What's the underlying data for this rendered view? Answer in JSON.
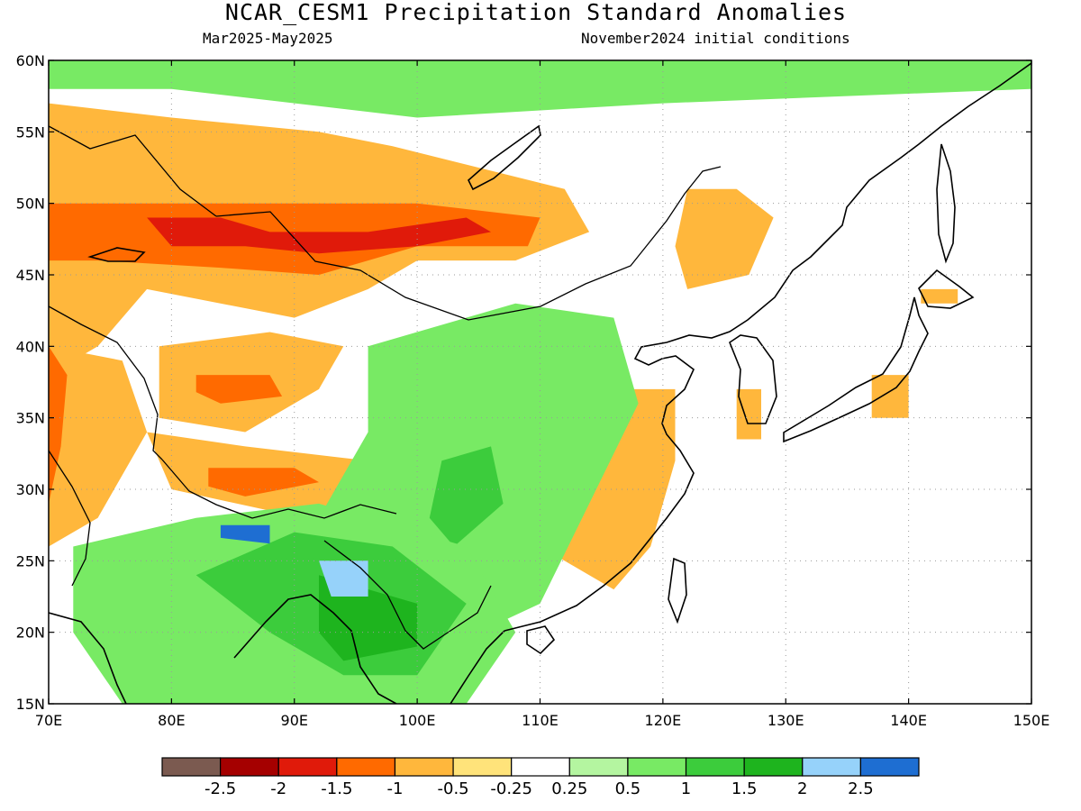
{
  "header": {
    "title": "NCAR_CESM1 Precipitation Standard Anomalies",
    "period": "Mar2025-May2025",
    "init": "November2024 initial conditions"
  },
  "map": {
    "lon_range": [
      70,
      150
    ],
    "lat_range": [
      15,
      60
    ],
    "lon_ticks": [
      {
        "v": 70,
        "label": "70E"
      },
      {
        "v": 80,
        "label": "80E"
      },
      {
        "v": 90,
        "label": "90E"
      },
      {
        "v": 100,
        "label": "100E"
      },
      {
        "v": 110,
        "label": "110E"
      },
      {
        "v": 120,
        "label": "120E"
      },
      {
        "v": 130,
        "label": "130E"
      },
      {
        "v": 140,
        "label": "140E"
      },
      {
        "v": 150,
        "label": "150E"
      }
    ],
    "lat_ticks": [
      {
        "v": 15,
        "label": "15N"
      },
      {
        "v": 20,
        "label": "20N"
      },
      {
        "v": 25,
        "label": "25N"
      },
      {
        "v": 30,
        "label": "30N"
      },
      {
        "v": 35,
        "label": "35N"
      },
      {
        "v": 40,
        "label": "40N"
      },
      {
        "v": 45,
        "label": "45N"
      },
      {
        "v": 50,
        "label": "50N"
      },
      {
        "v": 55,
        "label": "55N"
      },
      {
        "v": 60,
        "label": "60N"
      }
    ],
    "grid": true
  },
  "colorbar": {
    "colors": [
      "#7b5a50",
      "#a50000",
      "#e01a0a",
      "#ff6a00",
      "#ffb73c",
      "#ffe37a",
      "#ffffff",
      "#b4f5a0",
      "#78ea64",
      "#3ccc3c",
      "#1eb41e",
      "#96d2fa",
      "#1e6ed2"
    ],
    "labels": [
      "-2.5",
      "-2",
      "-1.5",
      "-1",
      "-0.5",
      "-0.25",
      "0.25",
      "0.5",
      "1",
      "1.5",
      "2",
      "2.5"
    ]
  },
  "anomaly_regions": [
    {
      "name": "north-mongolia-green",
      "color": "#78ea64",
      "poly": [
        [
          70,
          60
        ],
        [
          150,
          60
        ],
        [
          150,
          58
        ],
        [
          120,
          57
        ],
        [
          100,
          56
        ],
        [
          80,
          58
        ],
        [
          70,
          58
        ]
      ]
    },
    {
      "name": "kazakhstan-dry",
      "color": "#ffb73c",
      "poly": [
        [
          70,
          57
        ],
        [
          80,
          56
        ],
        [
          92,
          55
        ],
        [
          98,
          54
        ],
        [
          112,
          51
        ],
        [
          114,
          48
        ],
        [
          108,
          46
        ],
        [
          100,
          46
        ],
        [
          96,
          44
        ],
        [
          90,
          42
        ],
        [
          78,
          44
        ],
        [
          74,
          40
        ],
        [
          70,
          38
        ]
      ]
    },
    {
      "name": "central-asia-dry-core",
      "color": "#ff6a00",
      "poly": [
        [
          70,
          50
        ],
        [
          80,
          50
        ],
        [
          90,
          50
        ],
        [
          100,
          50
        ],
        [
          110,
          49
        ],
        [
          109,
          47
        ],
        [
          100,
          47
        ],
        [
          92,
          45
        ],
        [
          84,
          45.5
        ],
        [
          74,
          46
        ],
        [
          70,
          46
        ]
      ]
    },
    {
      "name": "altai-severe-dry",
      "color": "#e01a0a",
      "poly": [
        [
          78,
          49
        ],
        [
          84,
          49
        ],
        [
          88,
          48
        ],
        [
          96,
          48
        ],
        [
          104,
          49
        ],
        [
          106,
          48
        ],
        [
          100,
          47
        ],
        [
          92,
          46.5
        ],
        [
          86,
          47
        ],
        [
          80,
          47
        ]
      ]
    },
    {
      "name": "tarim-dry",
      "color": "#ffb73c",
      "poly": [
        [
          79,
          40
        ],
        [
          88,
          41
        ],
        [
          94,
          40
        ],
        [
          92,
          37
        ],
        [
          86,
          34
        ],
        [
          79,
          35
        ]
      ]
    },
    {
      "name": "tarim-dry-core",
      "color": "#ff6a00",
      "poly": [
        [
          82,
          38
        ],
        [
          88,
          38
        ],
        [
          89,
          36.5
        ],
        [
          84,
          36
        ],
        [
          82,
          36.8
        ]
      ]
    },
    {
      "name": "west-asia-dry",
      "color": "#ffb73c",
      "poly": [
        [
          70,
          40
        ],
        [
          76,
          39
        ],
        [
          78,
          34
        ],
        [
          74,
          28
        ],
        [
          70,
          26
        ]
      ]
    },
    {
      "name": "pakistan-dry-core",
      "color": "#ff6a00",
      "poly": [
        [
          70,
          40
        ],
        [
          71.5,
          38
        ],
        [
          71,
          33
        ],
        [
          70,
          29
        ]
      ]
    },
    {
      "name": "tibet-dry",
      "color": "#ffb73c",
      "poly": [
        [
          78,
          34
        ],
        [
          86,
          33
        ],
        [
          96,
          32
        ],
        [
          100,
          30.5
        ],
        [
          98,
          28
        ],
        [
          88,
          28.5
        ],
        [
          80,
          30
        ]
      ]
    },
    {
      "name": "tibet-dry-core",
      "color": "#ff6a00",
      "poly": [
        [
          83,
          31.5
        ],
        [
          90,
          31.5
        ],
        [
          92,
          30.5
        ],
        [
          86,
          29.5
        ],
        [
          83,
          30.2
        ]
      ]
    },
    {
      "name": "east-china-dry",
      "color": "#ffb73c",
      "poly": [
        [
          117,
          37
        ],
        [
          121,
          37
        ],
        [
          121,
          32
        ],
        [
          119,
          26
        ],
        [
          116,
          23
        ],
        [
          110,
          26
        ],
        [
          114,
          30
        ],
        [
          116,
          33
        ]
      ]
    },
    {
      "name": "manchuria-dry",
      "color": "#ffb73c",
      "poly": [
        [
          122,
          51
        ],
        [
          126,
          51
        ],
        [
          129,
          49
        ],
        [
          127,
          45
        ],
        [
          122,
          44
        ],
        [
          121,
          47
        ]
      ]
    },
    {
      "name": "korea-dry",
      "color": "#ffb73c",
      "poly": [
        [
          126,
          37
        ],
        [
          128,
          37
        ],
        [
          128,
          33.5
        ],
        [
          126,
          33.5
        ]
      ]
    },
    {
      "name": "japan-dry",
      "color": "#ffb73c",
      "poly": [
        [
          137,
          38
        ],
        [
          140,
          38
        ],
        [
          140,
          35
        ],
        [
          137,
          35
        ]
      ]
    },
    {
      "name": "hokkaido-dry",
      "color": "#ffb73c",
      "poly": [
        [
          141,
          44
        ],
        [
          144,
          44
        ],
        [
          144,
          43
        ],
        [
          141,
          43
        ]
      ]
    },
    {
      "name": "south-china-wet",
      "color": "#78ea64",
      "poly": [
        [
          96,
          40
        ],
        [
          108,
          43
        ],
        [
          116,
          42
        ],
        [
          118,
          36
        ],
        [
          114,
          29
        ],
        [
          110,
          22
        ],
        [
          100,
          18
        ],
        [
          96,
          22
        ],
        [
          92,
          28
        ],
        [
          96,
          34
        ]
      ]
    },
    {
      "name": "yunnan-wet-core",
      "color": "#3ccc3c",
      "poly": [
        [
          102,
          32
        ],
        [
          106,
          33
        ],
        [
          107,
          29
        ],
        [
          103,
          26
        ],
        [
          101,
          28
        ]
      ]
    },
    {
      "name": "south-asia-wet",
      "color": "#78ea64",
      "poly": [
        [
          72,
          26
        ],
        [
          82,
          28
        ],
        [
          92,
          29
        ],
        [
          104,
          26
        ],
        [
          108,
          20
        ],
        [
          104,
          15
        ],
        [
          76,
          15
        ],
        [
          72,
          20
        ]
      ]
    },
    {
      "name": "myanmar-wet-core",
      "color": "#3ccc3c",
      "poly": [
        [
          90,
          27
        ],
        [
          98,
          26
        ],
        [
          104,
          22
        ],
        [
          100,
          17
        ],
        [
          94,
          17
        ],
        [
          88,
          20
        ],
        [
          82,
          24
        ]
      ]
    },
    {
      "name": "myanmar-wet-deep",
      "color": "#1eb41e",
      "poly": [
        [
          92,
          24
        ],
        [
          100,
          22
        ],
        [
          100,
          19
        ],
        [
          94,
          18
        ],
        [
          92,
          20
        ]
      ]
    },
    {
      "name": "nepal-extreme-wet",
      "color": "#1e6ed2",
      "poly": [
        [
          84,
          27.5
        ],
        [
          88,
          27.5
        ],
        [
          88,
          26.2
        ],
        [
          84,
          26.6
        ]
      ]
    },
    {
      "name": "assam-very-wet",
      "color": "#96d2fa",
      "poly": [
        [
          92,
          25
        ],
        [
          96,
          25
        ],
        [
          96,
          22.5
        ],
        [
          93,
          22.5
        ]
      ]
    }
  ]
}
